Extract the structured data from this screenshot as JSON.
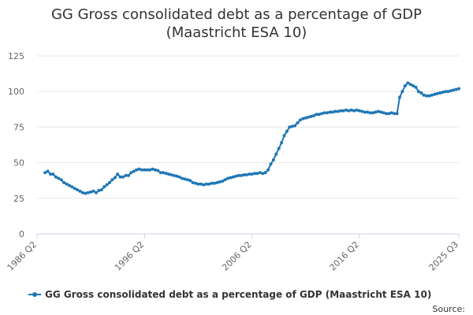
{
  "chart_data": {
    "type": "line",
    "title": "GG Gross consolidated debt as a percentage of GDP",
    "subtitle": "(Maastricht ESA 10)",
    "xlabel": "",
    "ylabel": "",
    "ylim": [
      0,
      130
    ],
    "y_ticks": [
      0,
      25,
      50,
      75,
      100,
      125
    ],
    "x_tick_labels": [
      "1986 Q2",
      "1996 Q2",
      "2006 Q2",
      "2016 Q2",
      "2025 Q3"
    ],
    "x_tick_positions": [
      1986.25,
      1996.25,
      2006.25,
      2016.25,
      2025.5
    ],
    "xlim": [
      1986.25,
      2025.5
    ],
    "grid": true,
    "legend_position": "bottom",
    "source_label": "Source:",
    "series": [
      {
        "name": "GG Gross consolidated debt as a percentage of GDP (Maastricht ESA 10)",
        "color": "#1f77b4",
        "x": [
          1987.0,
          1987.25,
          1987.5,
          1987.75,
          1988.0,
          1988.25,
          1988.5,
          1988.75,
          1989.0,
          1989.25,
          1989.5,
          1989.75,
          1990.0,
          1990.25,
          1990.5,
          1990.75,
          1991.0,
          1991.25,
          1991.5,
          1991.75,
          1992.0,
          1992.25,
          1992.5,
          1992.75,
          1993.0,
          1993.25,
          1993.5,
          1993.75,
          1994.0,
          1994.25,
          1994.5,
          1994.75,
          1995.0,
          1995.25,
          1995.5,
          1995.75,
          1996.0,
          1996.25,
          1996.5,
          1996.75,
          1997.0,
          1997.25,
          1997.5,
          1997.75,
          1998.0,
          1998.25,
          1998.5,
          1998.75,
          1999.0,
          1999.25,
          1999.5,
          1999.75,
          2000.0,
          2000.25,
          2000.5,
          2000.75,
          2001.0,
          2001.25,
          2001.5,
          2001.75,
          2002.0,
          2002.25,
          2002.5,
          2002.75,
          2003.0,
          2003.25,
          2003.5,
          2003.75,
          2004.0,
          2004.25,
          2004.5,
          2004.75,
          2005.0,
          2005.25,
          2005.5,
          2005.75,
          2006.0,
          2006.25,
          2006.5,
          2006.75,
          2007.0,
          2007.25,
          2007.5,
          2007.75,
          2008.0,
          2008.25,
          2008.5,
          2008.75,
          2009.0,
          2009.25,
          2009.5,
          2009.75,
          2010.0,
          2010.25,
          2010.5,
          2010.75,
          2011.0,
          2011.25,
          2011.5,
          2011.75,
          2012.0,
          2012.25,
          2012.5,
          2012.75,
          2013.0,
          2013.25,
          2013.5,
          2013.75,
          2014.0,
          2014.25,
          2014.5,
          2014.75,
          2015.0,
          2015.25,
          2015.5,
          2015.75,
          2016.0,
          2016.25,
          2016.5,
          2016.75,
          2017.0,
          2017.25,
          2017.5,
          2017.75,
          2018.0,
          2018.25,
          2018.5,
          2018.75,
          2019.0,
          2019.25,
          2019.5,
          2019.75,
          2020.0,
          2020.25,
          2020.5,
          2020.75,
          2021.0,
          2021.25,
          2021.5,
          2021.75,
          2022.0,
          2022.25,
          2022.5,
          2022.75,
          2023.0,
          2023.25,
          2023.5,
          2023.75,
          2024.0,
          2024.25,
          2024.5,
          2024.75,
          2025.0,
          2025.25,
          2025.5
        ],
        "values": [
          43.0,
          44.0,
          42.0,
          42.0,
          40.0,
          39.0,
          38.0,
          36.0,
          35.0,
          34.0,
          33.0,
          32.0,
          31.0,
          30.0,
          29.0,
          28.5,
          29.0,
          29.5,
          30.0,
          29.0,
          30.5,
          31.0,
          33.0,
          34.5,
          36.0,
          38.0,
          39.5,
          42.0,
          40.0,
          40.0,
          41.0,
          41.0,
          43.0,
          44.0,
          45.0,
          45.5,
          45.0,
          45.0,
          45.0,
          45.0,
          45.5,
          45.0,
          44.5,
          43.0,
          43.0,
          42.5,
          42.0,
          41.5,
          41.0,
          40.5,
          40.0,
          39.0,
          38.5,
          38.0,
          37.5,
          36.0,
          35.5,
          35.0,
          35.0,
          34.5,
          35.0,
          35.0,
          35.5,
          35.5,
          36.0,
          36.5,
          37.0,
          38.0,
          39.0,
          39.5,
          40.0,
          40.5,
          41.0,
          41.0,
          41.5,
          41.5,
          42.0,
          42.0,
          42.5,
          42.5,
          43.0,
          42.5,
          43.0,
          45.0,
          49.0,
          52.0,
          56.0,
          60.0,
          64.0,
          69.0,
          72.0,
          75.0,
          75.5,
          76.0,
          78.0,
          80.0,
          81.0,
          81.5,
          82.0,
          82.5,
          83.0,
          84.0,
          84.0,
          84.5,
          85.0,
          85.0,
          85.5,
          85.5,
          86.0,
          86.0,
          86.5,
          86.5,
          87.0,
          86.5,
          87.0,
          86.5,
          87.0,
          86.5,
          86.0,
          85.5,
          85.5,
          85.0,
          85.0,
          85.5,
          86.0,
          85.5,
          85.0,
          84.5,
          84.5,
          85.0,
          84.5,
          84.5,
          96.0,
          100.0,
          104.0,
          106.0,
          105.0,
          104.0,
          103.0,
          100.0,
          99.0,
          97.5,
          97.0,
          97.0,
          97.5,
          98.0,
          98.5,
          99.0,
          99.5,
          100.0,
          100.0,
          100.5,
          101.0,
          101.5,
          102.0
        ]
      }
    ]
  }
}
